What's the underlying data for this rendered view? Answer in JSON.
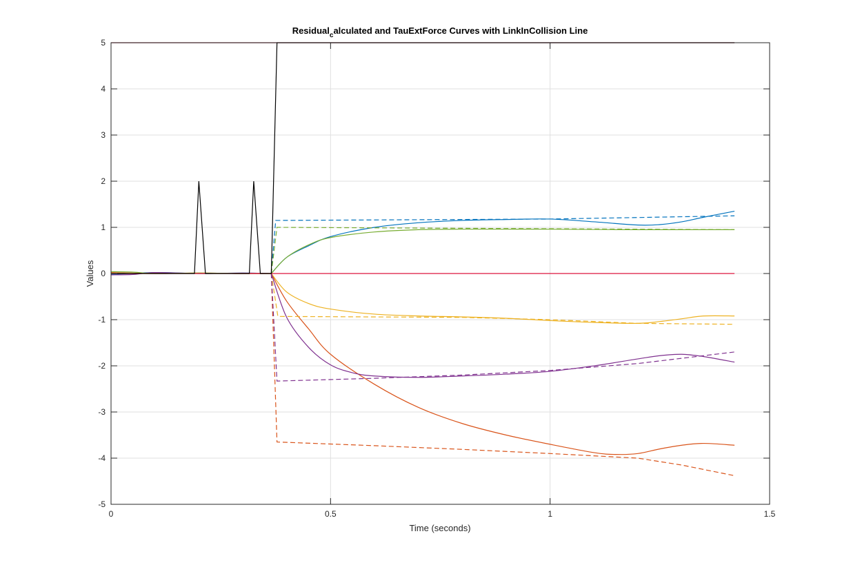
{
  "chart_data": {
    "type": "line",
    "title": "Residual",
    "title_subscript": "c",
    "title_rest": "alculated and TauExtForce Curves with LinkInCollision Line",
    "xlabel": "Time (seconds)",
    "ylabel": "Values",
    "xlim": [
      0,
      1.5
    ],
    "ylim": [
      -5,
      5
    ],
    "xticks": [
      0,
      0.5,
      1,
      1.5
    ],
    "xtick_labels": [
      "0",
      "0.5",
      "1",
      "1.5"
    ],
    "yticks": [
      -5,
      -4,
      -3,
      -2,
      -1,
      0,
      1,
      2,
      3,
      4,
      5
    ],
    "ytick_labels": [
      "-5",
      "-4",
      "-3",
      "-2",
      "-1",
      "0",
      "1",
      "2",
      "3",
      "4",
      "5"
    ],
    "grid": true,
    "legend": "none",
    "series": [
      {
        "color": "#0072BD",
        "style": "solid",
        "x": [
          0,
          0.1,
          0.2,
          0.3,
          0.365,
          0.4,
          0.45,
          0.5,
          0.6,
          0.7,
          0.8,
          0.9,
          1.0,
          1.1,
          1.2,
          1.25,
          1.3,
          1.35,
          1.42
        ],
        "y": [
          -0.02,
          0.02,
          0.0,
          0.01,
          0.0,
          0.35,
          0.6,
          0.8,
          1.0,
          1.1,
          1.15,
          1.17,
          1.18,
          1.12,
          1.05,
          1.06,
          1.12,
          1.22,
          1.35
        ]
      },
      {
        "color": "#0072BD",
        "style": "dashed",
        "x": [
          0.365,
          0.375,
          1.0,
          1.42
        ],
        "y": [
          0.0,
          1.15,
          1.18,
          1.25
        ]
      },
      {
        "color": "#D95319",
        "style": "solid",
        "x": [
          0,
          0.1,
          0.2,
          0.3,
          0.365,
          0.4,
          0.45,
          0.5,
          0.6,
          0.7,
          0.8,
          0.9,
          1.0,
          1.1,
          1.15,
          1.2,
          1.25,
          1.3,
          1.35,
          1.42
        ],
        "y": [
          0.02,
          0.0,
          0.01,
          0.0,
          0.0,
          -0.6,
          -1.2,
          -1.75,
          -2.4,
          -2.9,
          -3.25,
          -3.5,
          -3.7,
          -3.88,
          -3.92,
          -3.9,
          -3.8,
          -3.72,
          -3.68,
          -3.72
        ]
      },
      {
        "color": "#D95319",
        "style": "dashed",
        "x": [
          0.365,
          0.378,
          0.6,
          0.8,
          1.0,
          1.2,
          1.3,
          1.42
        ],
        "y": [
          0.0,
          -3.65,
          -3.73,
          -3.81,
          -3.9,
          -4.0,
          -4.15,
          -4.38
        ]
      },
      {
        "color": "#EDB120",
        "style": "solid",
        "x": [
          0,
          0.1,
          0.2,
          0.3,
          0.365,
          0.4,
          0.45,
          0.5,
          0.6,
          0.7,
          0.8,
          0.9,
          1.0,
          1.1,
          1.2,
          1.25,
          1.3,
          1.35,
          1.42
        ],
        "y": [
          0.01,
          0.0,
          0.01,
          0.0,
          0.0,
          -0.4,
          -0.65,
          -0.77,
          -0.88,
          -0.92,
          -0.94,
          -0.97,
          -1.02,
          -1.06,
          -1.08,
          -1.04,
          -0.98,
          -0.92,
          -0.92
        ]
      },
      {
        "color": "#EDB120",
        "style": "dashed",
        "x": [
          0.365,
          0.38,
          0.8,
          1.0,
          1.2,
          1.42
        ],
        "y": [
          0.0,
          -0.93,
          -0.95,
          -1.0,
          -1.08,
          -1.1
        ]
      },
      {
        "color": "#7E2F8E",
        "style": "solid",
        "x": [
          0,
          0.05,
          0.1,
          0.2,
          0.3,
          0.365,
          0.4,
          0.45,
          0.5,
          0.55,
          0.6,
          0.7,
          0.8,
          0.9,
          1.0,
          1.1,
          1.2,
          1.25,
          1.3,
          1.35,
          1.42
        ],
        "y": [
          -0.03,
          -0.02,
          0.02,
          0.0,
          0.01,
          0.0,
          -0.95,
          -1.6,
          -1.98,
          -2.15,
          -2.22,
          -2.25,
          -2.22,
          -2.18,
          -2.12,
          -2.0,
          -1.85,
          -1.78,
          -1.75,
          -1.8,
          -1.92
        ]
      },
      {
        "color": "#7E2F8E",
        "style": "dashed",
        "x": [
          0.365,
          0.378,
          0.6,
          0.8,
          1.0,
          1.2,
          1.42
        ],
        "y": [
          0.0,
          -2.33,
          -2.27,
          -2.2,
          -2.1,
          -1.95,
          -1.7
        ]
      },
      {
        "color": "#77AC30",
        "style": "solid",
        "x": [
          0,
          0.05,
          0.1,
          0.2,
          0.3,
          0.365,
          0.4,
          0.45,
          0.5,
          0.6,
          0.7,
          0.8,
          0.9,
          1.0,
          1.2,
          1.42
        ],
        "y": [
          0.04,
          0.03,
          0.0,
          0.01,
          0.0,
          0.0,
          0.35,
          0.62,
          0.78,
          0.9,
          0.95,
          0.96,
          0.96,
          0.96,
          0.95,
          0.95
        ]
      },
      {
        "color": "#77AC30",
        "style": "dashed",
        "x": [
          0.365,
          0.378,
          1.0,
          1.42
        ],
        "y": [
          0.0,
          1.0,
          0.97,
          0.95
        ]
      },
      {
        "color": "#A2142F",
        "style": "solid",
        "x": [
          0,
          1.42
        ],
        "y": [
          5,
          5
        ]
      },
      {
        "color": "#DC143C",
        "style": "solid",
        "x": [
          0,
          1.42
        ],
        "y": [
          0,
          0
        ]
      },
      {
        "color": "#000000",
        "style": "solid",
        "x": [
          0,
          0.1,
          0.19,
          0.2,
          0.215,
          0.3,
          0.315,
          0.325,
          0.34,
          0.365,
          0.378,
          1.42
        ],
        "y": [
          0,
          0,
          0,
          2,
          0,
          0,
          0,
          2,
          0,
          0,
          5,
          5
        ]
      }
    ]
  }
}
